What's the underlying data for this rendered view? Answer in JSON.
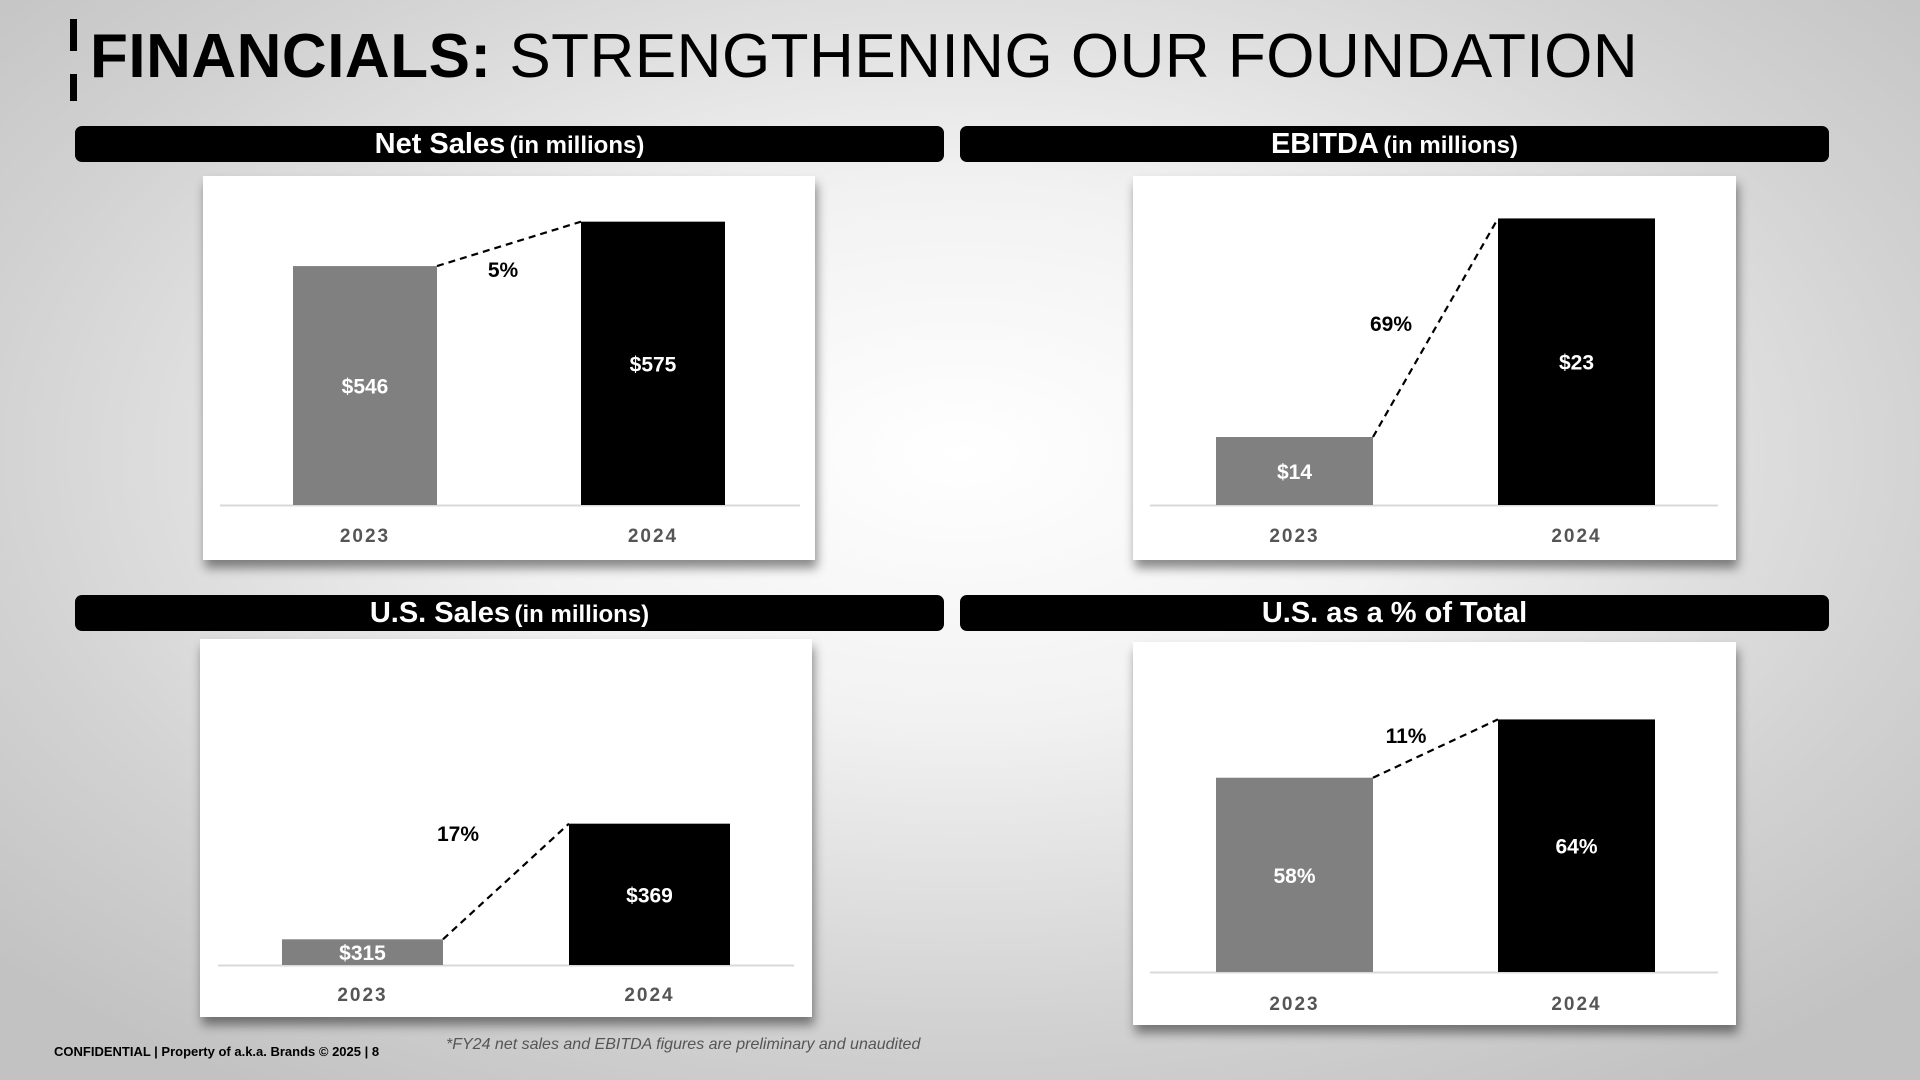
{
  "page": {
    "title_bold": "FINANCIALS:",
    "title_rest": "STRENGTHENING OUR FOUNDATION"
  },
  "sections": [
    {
      "title": "Net Sales",
      "subtitle": "(in millions)"
    },
    {
      "title": "EBITDA",
      "subtitle": "(in millions)"
    },
    {
      "title": "U.S. Sales",
      "subtitle": "(in millions)"
    },
    {
      "title": "U.S. as a % of Total",
      "subtitle": ""
    }
  ],
  "colors": {
    "bar_2023": "#808080",
    "bar_2024": "#000000",
    "axis": "#d9d9d9"
  },
  "chart_data": [
    {
      "type": "bar",
      "title": "Net Sales (in millions)",
      "categories": [
        "2023",
        "2024"
      ],
      "values": [
        546,
        575
      ],
      "data_labels": [
        "$546",
        "$575"
      ],
      "growth_label": "5%",
      "ylim": [
        390,
        580
      ]
    },
    {
      "type": "bar",
      "title": "EBITDA (in millions)",
      "categories": [
        "2023",
        "2024"
      ],
      "values": [
        14,
        23
      ],
      "data_labels": [
        "$14",
        "$23"
      ],
      "growth_label": "69%",
      "ylim": [
        11.2,
        23.1
      ]
    },
    {
      "type": "bar",
      "title": "U.S. Sales (in millions)",
      "categories": [
        "2023",
        "2024"
      ],
      "values": [
        315,
        369
      ],
      "data_labels": [
        "$315",
        "$369"
      ],
      "growth_label": "17%",
      "ylim": [
        303,
        402
      ]
    },
    {
      "type": "bar",
      "title": "U.S. as a % of Total",
      "categories": [
        "2023",
        "2024"
      ],
      "values": [
        58,
        64
      ],
      "data_labels": [
        "58%",
        "64%"
      ],
      "growth_label": "11%",
      "ylim": [
        38,
        66
      ]
    }
  ],
  "footer": {
    "confidential": "CONFIDENTIAL | Property of a.k.a. Brands  © 2025 |  8",
    "note": "*FY24 net sales and EBITDA figures are preliminary and unaudited"
  }
}
